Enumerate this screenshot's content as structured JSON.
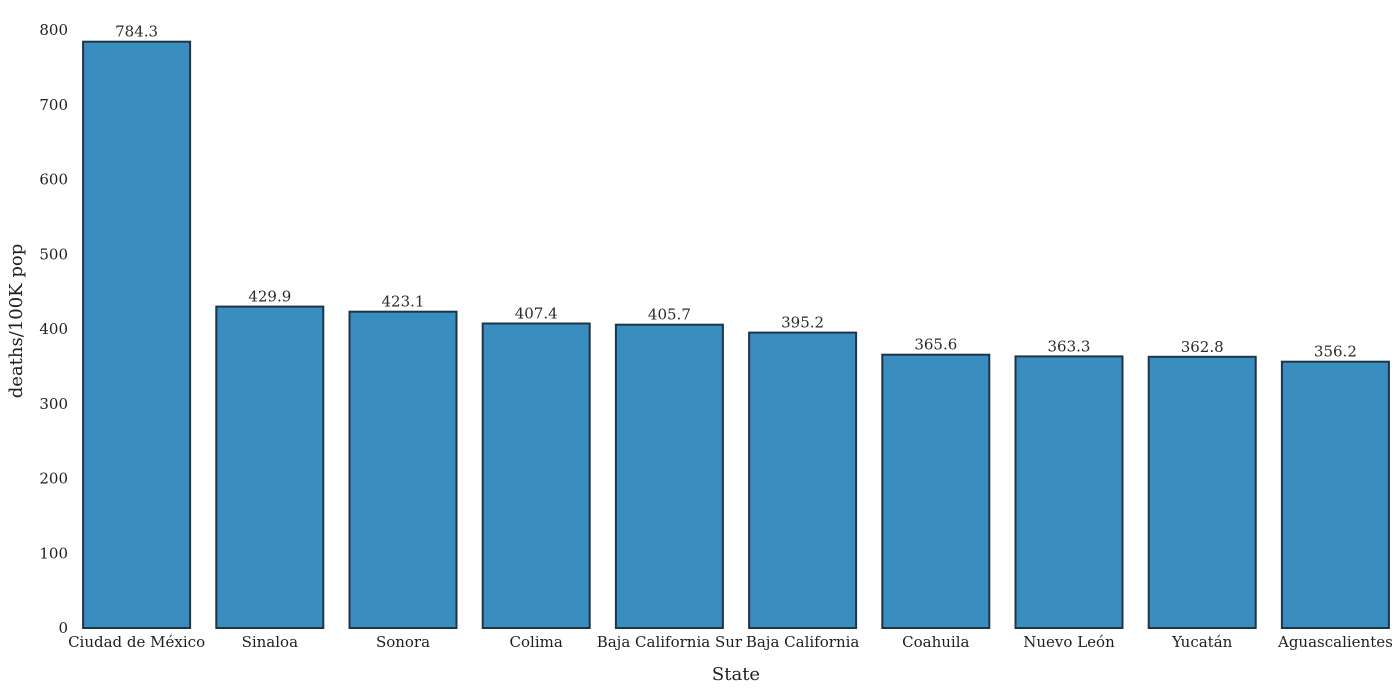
{
  "chart_data": {
    "type": "bar",
    "categories": [
      "Ciudad de México",
      "Sinaloa",
      "Sonora",
      "Colima",
      "Baja California Sur",
      "Baja California",
      "Coahuila",
      "Nuevo León",
      "Yucatán",
      "Aguascalientes"
    ],
    "values": [
      784.3,
      429.9,
      423.1,
      407.4,
      405.7,
      395.2,
      365.6,
      363.3,
      362.8,
      356.2
    ],
    "data_labels": [
      "784.3",
      "429.9",
      "423.1",
      "407.4",
      "405.7",
      "395.2",
      "365.6",
      "363.3",
      "362.8",
      "356.2"
    ],
    "xlabel": "State",
    "ylabel": "deaths/100K pop",
    "ylim": [
      0,
      800
    ],
    "yticks": [
      0,
      100,
      200,
      300,
      400,
      500,
      600,
      700,
      800
    ],
    "grid": false,
    "legend": "none",
    "bar_color": "#3a8dbf",
    "bar_edge_color": "#1f3447"
  }
}
